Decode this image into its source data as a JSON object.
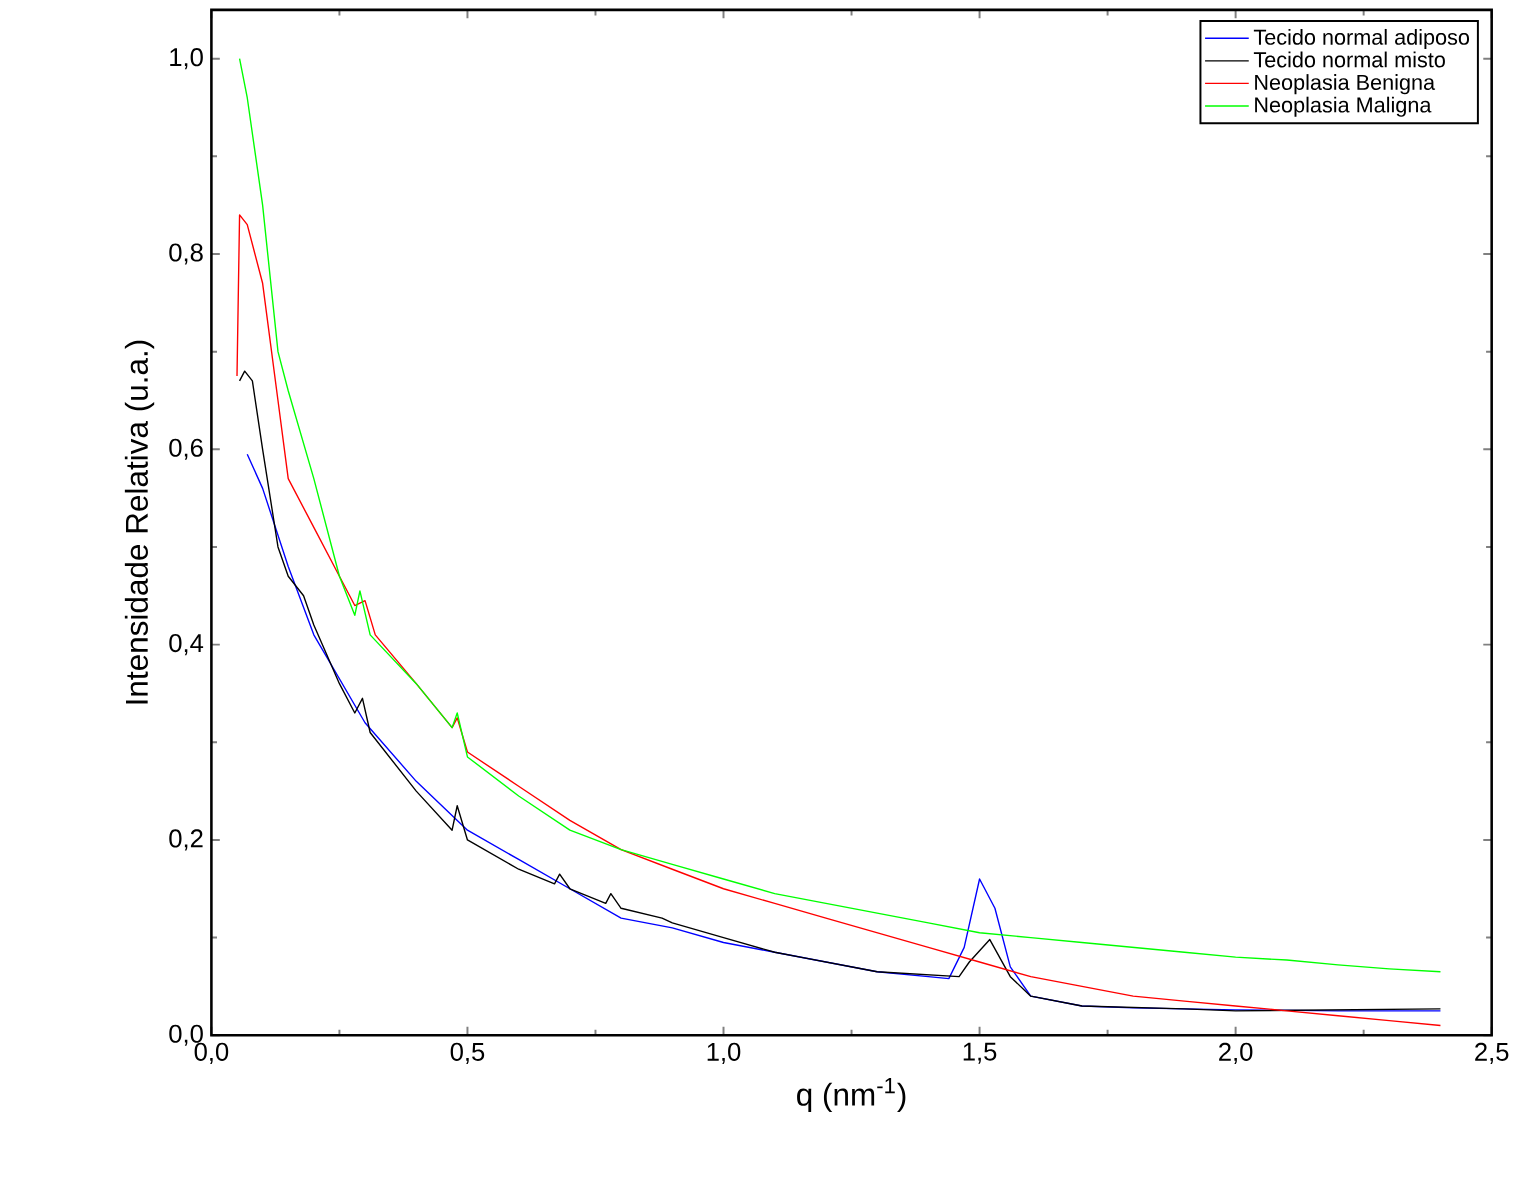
{
  "chart_data": {
    "type": "line",
    "xlabel": "q (nm$^{-1}$)",
    "ylabel": "Intensidade Relativa (u.a.)",
    "xlim": [
      0,
      2.5
    ],
    "ylim": [
      0,
      1.05
    ],
    "xticks": [
      {
        "value": 0,
        "label": "0,0"
      },
      {
        "value": 0.5,
        "label": "0,5"
      },
      {
        "value": 1,
        "label": "1,0"
      },
      {
        "value": 1.5,
        "label": "1,5"
      },
      {
        "value": 2,
        "label": "2,0"
      },
      {
        "value": 2.5,
        "label": "2,5"
      }
    ],
    "yticks": [
      {
        "value": 0,
        "label": "0,0"
      },
      {
        "value": 0.2,
        "label": "0,2"
      },
      {
        "value": 0.4,
        "label": "0,4"
      },
      {
        "value": 0.6,
        "label": "0,6"
      },
      {
        "value": 0.8,
        "label": "0,8"
      },
      {
        "value": 1.0,
        "label": "1,0"
      }
    ],
    "legend": "top right",
    "grid": false,
    "marker": "none",
    "line_style": "solid",
    "series": [
      {
        "name": "Tecido normal adiposo",
        "color": "#0000ff",
        "x": [
          0.07,
          0.1,
          0.15,
          0.2,
          0.3,
          0.4,
          0.5,
          0.6,
          0.7,
          0.8,
          0.9,
          1.0,
          1.1,
          1.2,
          1.3,
          1.4,
          1.44,
          1.47,
          1.5,
          1.53,
          1.56,
          1.6,
          1.7,
          1.8,
          2.0,
          2.2,
          2.4
        ],
        "values": [
          0.595,
          0.56,
          0.48,
          0.41,
          0.32,
          0.26,
          0.21,
          0.18,
          0.15,
          0.12,
          0.11,
          0.095,
          0.085,
          0.075,
          0.065,
          0.06,
          0.058,
          0.09,
          0.16,
          0.13,
          0.07,
          0.04,
          0.03,
          0.028,
          0.026,
          0.025,
          0.025
        ]
      },
      {
        "name": "Tecido normal misto",
        "color": "#000000",
        "x": [
          0.055,
          0.065,
          0.08,
          0.1,
          0.13,
          0.15,
          0.18,
          0.2,
          0.25,
          0.28,
          0.295,
          0.31,
          0.4,
          0.47,
          0.48,
          0.5,
          0.6,
          0.67,
          0.68,
          0.7,
          0.77,
          0.78,
          0.8,
          0.88,
          0.9,
          1.0,
          1.1,
          1.15,
          1.3,
          1.46,
          1.48,
          1.52,
          1.56,
          1.6,
          1.7,
          1.9,
          2.0,
          2.4
        ],
        "values": [
          0.67,
          0.68,
          0.67,
          0.6,
          0.5,
          0.47,
          0.45,
          0.42,
          0.36,
          0.33,
          0.345,
          0.31,
          0.25,
          0.21,
          0.235,
          0.2,
          0.17,
          0.155,
          0.165,
          0.15,
          0.135,
          0.145,
          0.13,
          0.12,
          0.115,
          0.1,
          0.085,
          0.08,
          0.065,
          0.06,
          0.075,
          0.098,
          0.06,
          0.04,
          0.03,
          0.027,
          0.025,
          0.027
        ]
      },
      {
        "name": "Neoplasia Benigna",
        "color": "#ff0000",
        "x": [
          0.05,
          0.055,
          0.07,
          0.1,
          0.13,
          0.15,
          0.2,
          0.25,
          0.28,
          0.3,
          0.32,
          0.4,
          0.47,
          0.48,
          0.5,
          0.6,
          0.7,
          0.8,
          0.9,
          1.0,
          1.1,
          1.2,
          1.3,
          1.4,
          1.5,
          1.6,
          1.7,
          1.8,
          1.9,
          2.0,
          2.1,
          2.2,
          2.3,
          2.4
        ],
        "values": [
          0.675,
          0.84,
          0.83,
          0.77,
          0.65,
          0.57,
          0.52,
          0.47,
          0.44,
          0.445,
          0.41,
          0.36,
          0.315,
          0.325,
          0.29,
          0.255,
          0.22,
          0.19,
          0.17,
          0.15,
          0.135,
          0.12,
          0.105,
          0.09,
          0.075,
          0.06,
          0.05,
          0.04,
          0.035,
          0.03,
          0.025,
          0.02,
          0.015,
          0.01
        ]
      },
      {
        "name": "Neoplasia Maligna",
        "color": "#00ff00",
        "x": [
          0.055,
          0.07,
          0.1,
          0.13,
          0.15,
          0.2,
          0.25,
          0.28,
          0.29,
          0.31,
          0.4,
          0.47,
          0.48,
          0.5,
          0.6,
          0.7,
          0.8,
          0.9,
          1.0,
          1.1,
          1.2,
          1.3,
          1.4,
          1.5,
          1.6,
          1.7,
          1.8,
          1.9,
          2.0,
          2.1,
          2.2,
          2.3,
          2.4
        ],
        "values": [
          1.0,
          0.96,
          0.85,
          0.7,
          0.66,
          0.57,
          0.47,
          0.43,
          0.455,
          0.41,
          0.36,
          0.315,
          0.33,
          0.285,
          0.245,
          0.21,
          0.19,
          0.175,
          0.16,
          0.145,
          0.135,
          0.125,
          0.115,
          0.105,
          0.1,
          0.095,
          0.09,
          0.085,
          0.08,
          0.077,
          0.072,
          0.068,
          0.065
        ]
      }
    ]
  }
}
